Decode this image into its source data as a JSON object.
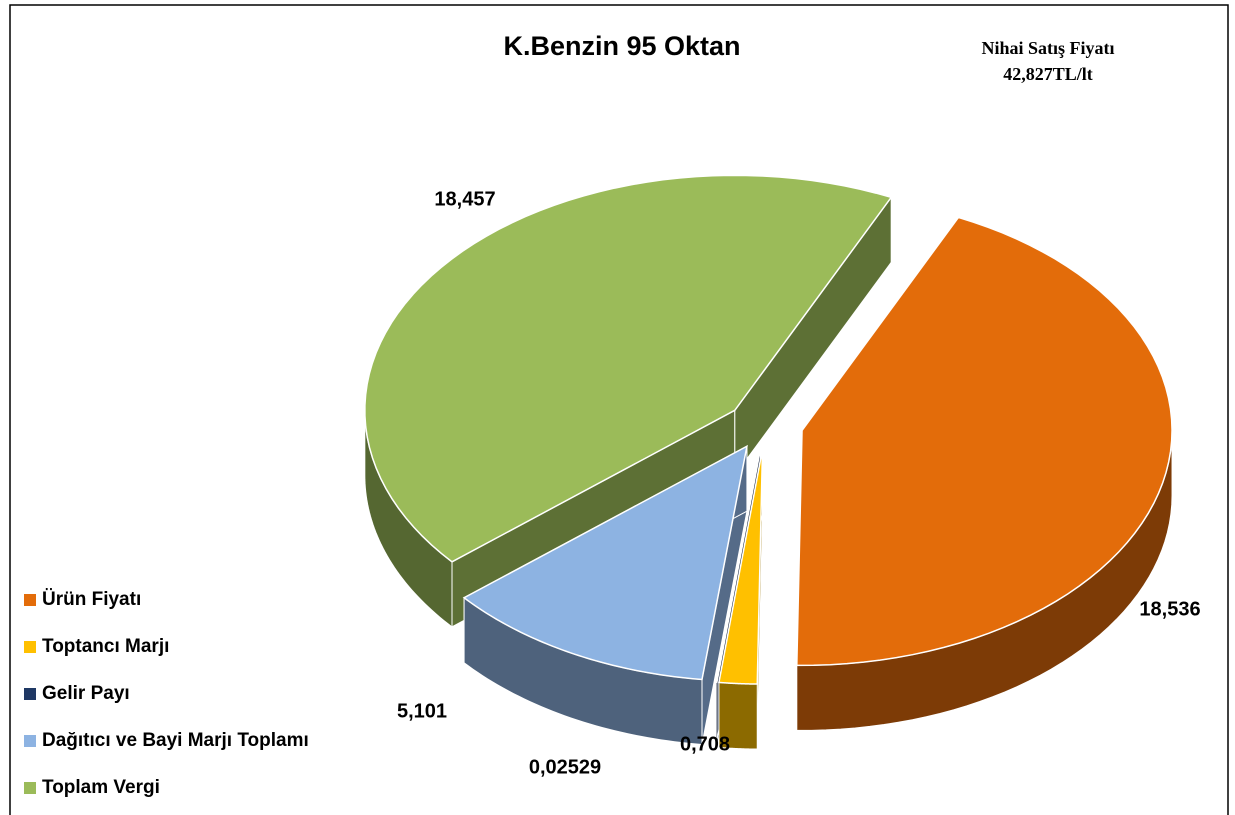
{
  "chart_data": {
    "type": "pie",
    "title": "K.Benzin 95 Oktan",
    "annotation": [
      "Nihai Satış Fiyatı",
      "42,827TL/lt"
    ],
    "categories": [
      "Ürün Fiyatı",
      "Toptancı Marjı",
      "Gelir Payı",
      "Dağıtıcı ve Bayi Marjı Toplamı",
      "Toplam Vergi"
    ],
    "values": [
      18.536,
      0.708,
      0.02529,
      5.101,
      18.457
    ],
    "value_labels": [
      "18,536",
      "0,708",
      "0,02529",
      "5,101",
      "18,457"
    ],
    "colors": [
      "#e36c0a",
      "#ffc000",
      "#1f3864",
      "#8db3e2",
      "#9bbb59"
    ],
    "legend": "left"
  }
}
